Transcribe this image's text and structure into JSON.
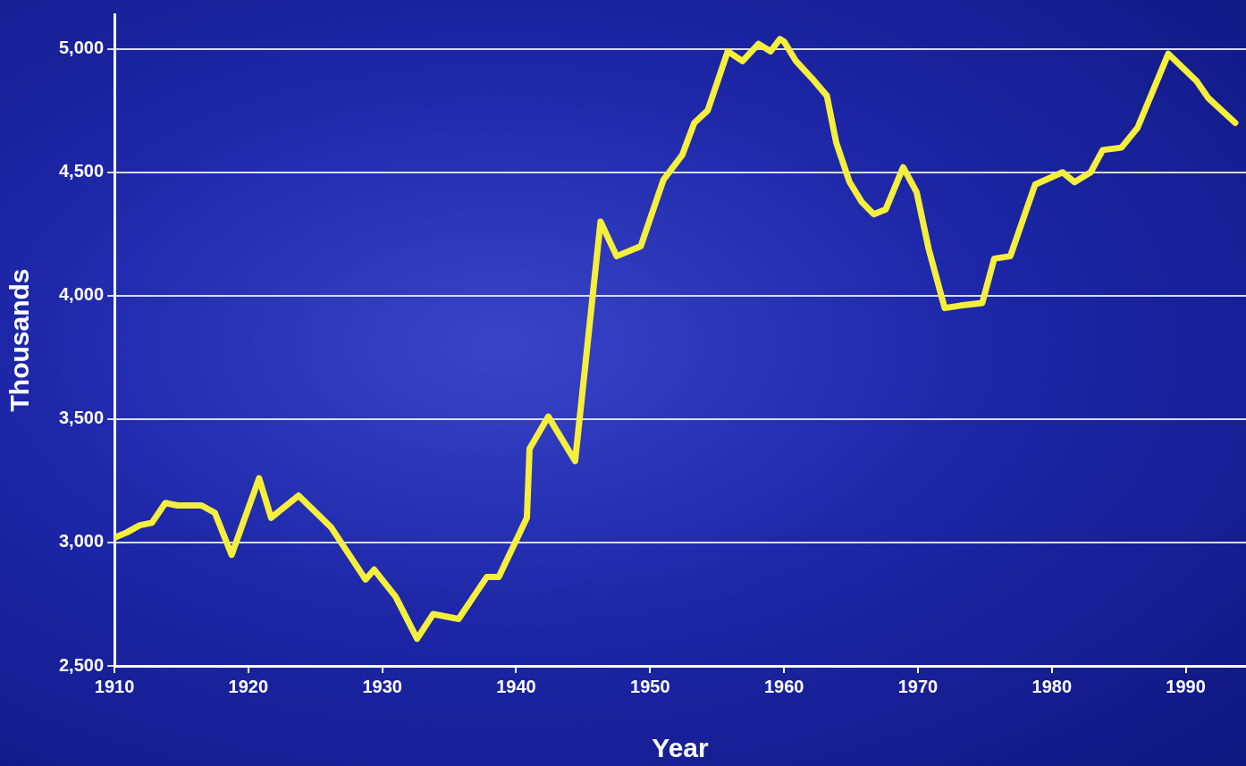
{
  "chart_data": {
    "type": "line",
    "xlabel": "Year",
    "ylabel": "Thousands",
    "x": [
      1910,
      1910.9,
      1911.9,
      1912.8,
      1913.8,
      1914.7,
      1916.5,
      1917.5,
      1918.75,
      1920.8,
      1921.7,
      1923.75,
      1926.2,
      1928.75,
      1929.4,
      1931,
      1932.6,
      1933.8,
      1935.7,
      1937.8,
      1938.7,
      1940.8,
      1941,
      1942.4,
      1944.4,
      1946.3,
      1947.5,
      1949.3,
      1951,
      1952.4,
      1953.3,
      1954.3,
      1955.8,
      1956.9,
      1958.1,
      1959,
      1959.7,
      1960,
      1960.9,
      1962.1,
      1963.2,
      1963.9,
      1964.9,
      1965.8,
      1966.7,
      1967.6,
      1968.9,
      1969.9,
      1970.8,
      1972,
      1973.2,
      1974.8,
      1975.7,
      1976.9,
      1978.75,
      1980.8,
      1981.7,
      1982.9,
      1983.8,
      1985.2,
      1986.4,
      1988.7,
      1990.8,
      1991.7,
      1993.7
    ],
    "series": [
      {
        "color": "#f5ef3c",
        "values": [
          3020,
          3040,
          3070,
          3080,
          3160,
          3150,
          3150,
          3120,
          2950,
          3260,
          3100,
          3190,
          3060,
          2850,
          2890,
          2780,
          2610,
          2710,
          2690,
          2860,
          2860,
          3100,
          3380,
          3510,
          3330,
          4300,
          4160,
          4200,
          4470,
          4570,
          4700,
          4750,
          4990,
          4950,
          5020,
          4990,
          5040,
          5030,
          4950,
          4880,
          4810,
          4620,
          4460,
          4380,
          4330,
          4350,
          4520,
          4420,
          4190,
          3950,
          3960,
          3970,
          4150,
          4160,
          4450,
          4500,
          4460,
          4500,
          4590,
          4600,
          4680,
          4980,
          4870,
          4800,
          4700
        ]
      }
    ],
    "xlim": [
      1910,
      1994.5
    ],
    "xticks": [
      1910,
      1920,
      1930,
      1940,
      1950,
      1960,
      1970,
      1980,
      1990
    ],
    "ylim": [
      2500,
      5140
    ],
    "yticks": [
      {
        "value": 2500,
        "label": "2,500"
      },
      {
        "value": 3000,
        "label": "3,000"
      },
      {
        "value": 3500,
        "label": "3,500"
      },
      {
        "value": 4000,
        "label": "4,000"
      },
      {
        "value": 4500,
        "label": "4,500"
      },
      {
        "value": 5000,
        "label": "5,000"
      }
    ],
    "grid": "y",
    "legend": false,
    "marker": "none",
    "line_style": "solid"
  }
}
